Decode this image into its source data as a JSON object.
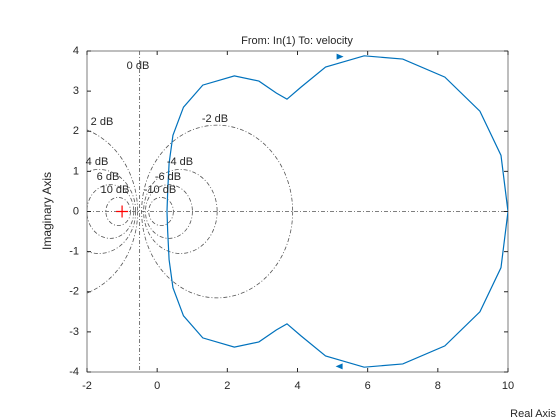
{
  "chart_data": {
    "type": "line",
    "title": "From: In(1)  To: velocity",
    "xlabel": "Real Axis",
    "ylabel": "Imaginary Axis",
    "series": [
      {
        "name": "velocity",
        "color": "#0072bd",
        "x": [
          0.28,
          0.3,
          0.34,
          0.45,
          0.75,
          1.3,
          2.2,
          2.9,
          3.4,
          3.7,
          4.1,
          4.8,
          5.9,
          7.0,
          8.2,
          9.2,
          9.8,
          10.0,
          9.8,
          9.2,
          8.2,
          7.0,
          5.9,
          4.8,
          4.1,
          3.7,
          3.4,
          2.9,
          2.2,
          1.3,
          0.75,
          0.45,
          0.34,
          0.3,
          0.28
        ],
        "values": [
          0,
          0.5,
          1.2,
          1.9,
          2.6,
          3.15,
          3.38,
          3.25,
          2.95,
          2.8,
          3.1,
          3.6,
          3.88,
          3.8,
          3.35,
          2.5,
          1.4,
          0,
          -1.4,
          -2.5,
          -3.35,
          -3.8,
          -3.88,
          -3.6,
          -3.1,
          -2.8,
          -2.95,
          -3.25,
          -3.38,
          -3.15,
          -2.6,
          -1.9,
          -1.2,
          -0.5,
          0
        ]
      }
    ],
    "critical_point": {
      "x": -1,
      "y": 0,
      "color": "#ff0000"
    },
    "mgrid": [
      {
        "value": 0,
        "label": "0 dB"
      },
      {
        "value": 2,
        "label": "2 dB"
      },
      {
        "value": -2,
        "label": "-2 dB"
      },
      {
        "value": 4,
        "label": "4 dB"
      },
      {
        "value": -4,
        "label": "-4 dB"
      },
      {
        "value": 6,
        "label": "6 dB"
      },
      {
        "value": -6,
        "label": "-6 dB"
      },
      {
        "value": 10,
        "label": "10 dB"
      },
      {
        "value": -10,
        "label": "-10 dB"
      }
    ],
    "xlim": [
      -2,
      10
    ],
    "xticks": [
      -2,
      0,
      2,
      4,
      6,
      8,
      10
    ],
    "ylim": [
      -4,
      4
    ],
    "yticks": [
      -4,
      -3,
      -2,
      -1,
      0,
      1,
      2,
      3,
      4
    ]
  }
}
